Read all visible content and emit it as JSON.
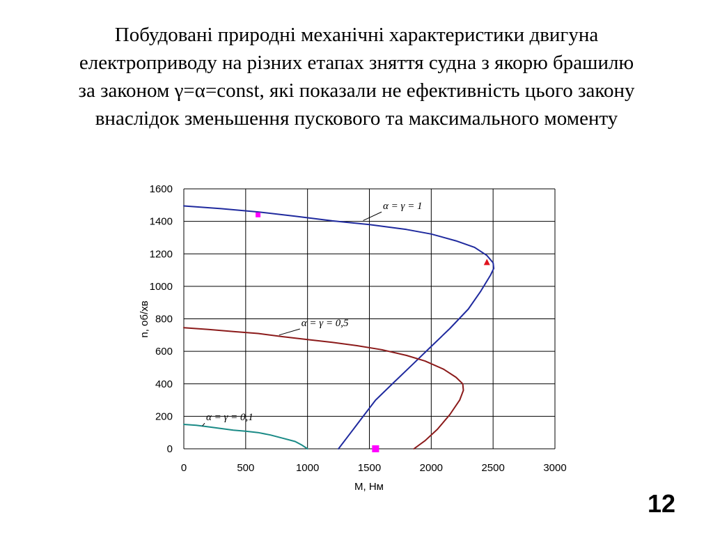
{
  "slide": {
    "title_lines": [
      "Побудовані природні механічні характеристики двигуна",
      "електроприводу на різних етапах зняття судна з якорю брашилю",
      "за  законом γ=α=const, які показали не ефективність цього закону",
      "внаслідок зменьшення пускового та максимального моменту"
    ],
    "page_number": "12"
  },
  "chart_data": {
    "type": "line",
    "xlabel": "M, Нм",
    "ylabel": "n, об/хв",
    "xlim": [
      0,
      3000
    ],
    "ylim": [
      0,
      1600
    ],
    "x_ticks": [
      "0",
      "500",
      "1000",
      "1500",
      "2000",
      "2500",
      "3000"
    ],
    "y_ticks": [
      "0",
      "200",
      "400",
      "600",
      "800",
      "1000",
      "1200",
      "1400",
      "1600"
    ],
    "grid": true,
    "colors": {
      "curve_1": "#1f2a9e",
      "curve_05": "#8b1a1a",
      "curve_01": "#1a8a86",
      "marker_square": "#ff00ff",
      "marker_triangle": "#e0141e",
      "grid": "#000000"
    },
    "series": [
      {
        "label": "α = γ = 1",
        "color_key": "curve_1",
        "points": [
          [
            0,
            1495
          ],
          [
            300,
            1478
          ],
          [
            600,
            1458
          ],
          [
            900,
            1432
          ],
          [
            1200,
            1403
          ],
          [
            1500,
            1380
          ],
          [
            1800,
            1350
          ],
          [
            2000,
            1322
          ],
          [
            2200,
            1280
          ],
          [
            2350,
            1240
          ],
          [
            2450,
            1190
          ],
          [
            2500,
            1145
          ],
          [
            2505,
            1110
          ],
          [
            2480,
            1070
          ],
          [
            2400,
            970
          ],
          [
            2300,
            860
          ],
          [
            2150,
            740
          ],
          [
            2000,
            630
          ],
          [
            1850,
            520
          ],
          [
            1700,
            410
          ],
          [
            1550,
            300
          ],
          [
            1450,
            200
          ],
          [
            1350,
            100
          ],
          [
            1250,
            0
          ]
        ]
      },
      {
        "label": "α = γ = 0,5",
        "color_key": "curve_05",
        "points": [
          [
            0,
            745
          ],
          [
            200,
            735
          ],
          [
            400,
            722
          ],
          [
            600,
            710
          ],
          [
            800,
            690
          ],
          [
            1000,
            672
          ],
          [
            1200,
            655
          ],
          [
            1400,
            635
          ],
          [
            1600,
            610
          ],
          [
            1800,
            575
          ],
          [
            1950,
            540
          ],
          [
            2100,
            490
          ],
          [
            2200,
            440
          ],
          [
            2255,
            400
          ],
          [
            2260,
            360
          ],
          [
            2230,
            300
          ],
          [
            2150,
            210
          ],
          [
            2050,
            120
          ],
          [
            1950,
            50
          ],
          [
            1860,
            0
          ]
        ]
      },
      {
        "label": "α = γ = 0,1",
        "color_key": "curve_01",
        "points": [
          [
            0,
            150
          ],
          [
            100,
            145
          ],
          [
            200,
            135
          ],
          [
            300,
            125
          ],
          [
            400,
            115
          ],
          [
            500,
            108
          ],
          [
            600,
            100
          ],
          [
            700,
            85
          ],
          [
            800,
            65
          ],
          [
            900,
            45
          ],
          [
            950,
            25
          ],
          [
            1000,
            0
          ]
        ]
      }
    ],
    "markers": [
      {
        "shape": "square",
        "x": 600,
        "y": 1440,
        "color_key": "marker_square"
      },
      {
        "shape": "triangle",
        "x": 2450,
        "y": 1148,
        "color_key": "marker_triangle"
      },
      {
        "shape": "square",
        "x": 1550,
        "y": 0,
        "color_key": "marker_square"
      }
    ],
    "annotations": [
      {
        "text": "α = γ = 1",
        "x": 1610,
        "y": 1475,
        "leader_to": [
          1450,
          1405
        ]
      },
      {
        "text": "α = γ = 0,5",
        "x": 950,
        "y": 755,
        "leader_to": [
          770,
          700
        ]
      },
      {
        "text": "α = γ = 0,1",
        "x": 180,
        "y": 175,
        "leader_to": [
          150,
          140
        ]
      }
    ]
  }
}
